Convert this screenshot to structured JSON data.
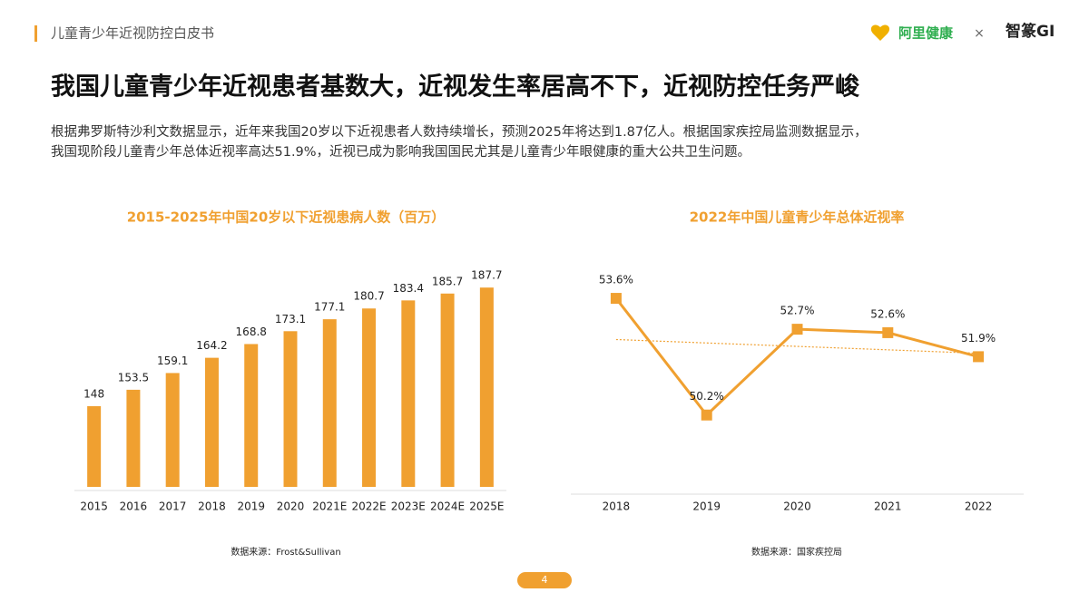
{
  "header": {
    "report_title": "儿童青少年近视防控白皮书",
    "logo_left": "阿里健康",
    "separator": "×",
    "logo_right": "智篆GI"
  },
  "title": "我国儿童青少年近视患者基数大，近视发生率居高不下，近视防控任务严峻",
  "body": [
    "根据弗罗斯特沙利文数据显示，近年来我国20岁以下近视患者人数持续增长，预测2025年将达到1.87亿人。根据国家疾控局监测数据显示，",
    "我国现阶段儿童青少年总体近视率高达51.9%，近视已成为影响我国国民尤其是儿童青少年眼健康的重大公共卫生问题。"
  ],
  "chart_data": [
    {
      "type": "bar",
      "title": "2015-2025年中国20岁以下近视患病人数（百万）",
      "categories": [
        "2015",
        "2016",
        "2017",
        "2018",
        "2019",
        "2020",
        "2021E",
        "2022E",
        "2023E",
        "2024E",
        "2025E"
      ],
      "values": [
        148,
        153.5,
        159.1,
        164.2,
        168.8,
        173.1,
        177.1,
        180.7,
        183.4,
        185.7,
        187.7
      ],
      "color": "#f0a030",
      "ylim": [
        121,
        192
      ],
      "source": "数据来源：Frost&Sullivan"
    },
    {
      "type": "line",
      "title": "2022年中国儿童青少年总体近视率",
      "categories": [
        "2018",
        "2019",
        "2020",
        "2021",
        "2022"
      ],
      "values": [
        53.6,
        50.2,
        52.7,
        52.6,
        51.9
      ],
      "value_labels": [
        "53.6%",
        "50.2%",
        "52.7%",
        "52.6%",
        "51.9%"
      ],
      "color": "#f0a030",
      "ylim": [
        48,
        54.5
      ],
      "trendline": true,
      "source": "数据来源：国家疾控局"
    }
  ],
  "page_number": "4"
}
